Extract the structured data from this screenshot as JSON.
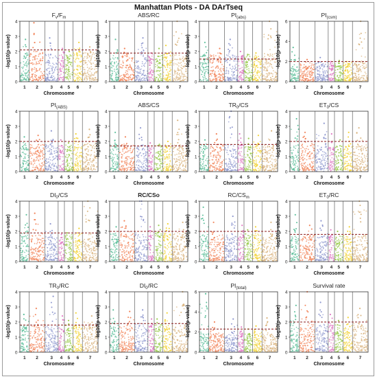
{
  "title": "Manhattan Plots - DA DArTseq",
  "palette": [
    "#5cbf9a",
    "#f2845a",
    "#8f98cf",
    "#e07bc4",
    "#99cc4d",
    "#f2d233",
    "#d9b37d"
  ],
  "chart_data": [
    {
      "type": "scatter",
      "title": "F",
      "title_main": "F",
      "title_sub": "v",
      "title_rest": "/F",
      "title_sub2": "m",
      "xlabel": "Chromosome",
      "ylabel": "-log10(p-value)",
      "ylim": [
        0,
        4
      ],
      "yticks": [
        0,
        1,
        2,
        3,
        4
      ],
      "categories": [
        "1",
        "2",
        "3",
        "4",
        "5",
        "6",
        "7"
      ],
      "threshold": 2.1,
      "peaks": [
        2.8,
        3.9,
        2.9,
        2.2,
        2.0,
        2.6,
        2.3
      ],
      "base": [
        0.6,
        0.7,
        0.55,
        0.6,
        0.55,
        0.6,
        0.6
      ],
      "bold": false
    },
    {
      "type": "scatter",
      "title": "ABS/RC",
      "xlabel": "Chromosome",
      "ylabel": "-log10(p-value)",
      "ylim": [
        0,
        4
      ],
      "yticks": [
        0,
        1,
        2,
        3,
        4
      ],
      "categories": [
        "1",
        "2",
        "3",
        "4",
        "5",
        "6",
        "7"
      ],
      "threshold": 1.9,
      "peaks": [
        2.8,
        2.2,
        2.9,
        1.9,
        2.2,
        2.4,
        4.2
      ],
      "base": [
        0.5,
        0.55,
        0.5,
        0.5,
        0.5,
        0.55,
        0.5
      ],
      "bold": false
    },
    {
      "type": "scatter",
      "title": "PI",
      "title_main": "PI",
      "title_sub": "(abs)",
      "xlabel": "Chromosome",
      "ylabel": "-log10(p-value)",
      "ylim": [
        0,
        4
      ],
      "yticks": [
        0,
        1,
        2,
        3,
        4
      ],
      "categories": [
        "1",
        "2",
        "3",
        "4",
        "5",
        "6",
        "7"
      ],
      "threshold": 1.5,
      "peaks": [
        2.6,
        2.2,
        2.8,
        2.0,
        1.8,
        1.9,
        4.0
      ],
      "base": [
        0.5,
        0.55,
        0.5,
        0.5,
        0.5,
        0.5,
        0.6
      ],
      "bold": false
    },
    {
      "type": "scatter",
      "title": "PI",
      "title_main": "PI",
      "title_sub": "(csm)",
      "xlabel": "Chromosome",
      "ylabel": "-log10(p-value)",
      "ylim": [
        0,
        6
      ],
      "yticks": [
        0,
        2,
        4,
        6
      ],
      "categories": [
        "1",
        "2",
        "3",
        "4",
        "5",
        "6",
        "7"
      ],
      "threshold": 2.0,
      "peaks": [
        3.4,
        2.2,
        2.4,
        2.0,
        2.1,
        2.0,
        6.0
      ],
      "base": [
        0.6,
        0.6,
        0.6,
        0.6,
        0.6,
        0.6,
        0.8
      ],
      "bold": false
    },
    {
      "type": "scatter",
      "title": "PI",
      "title_main": "PI",
      "title_sub": "(ABS)",
      "xlabel": "Chromosome",
      "ylabel": "-log10(p-value)",
      "ylim": [
        0,
        4
      ],
      "yticks": [
        0,
        1,
        2,
        3,
        4
      ],
      "categories": [
        "1",
        "2",
        "3",
        "4",
        "5",
        "6",
        "7"
      ],
      "threshold": 2.0,
      "peaks": [
        2.3,
        2.4,
        2.7,
        2.1,
        1.9,
        2.5,
        2.8
      ],
      "base": [
        0.5,
        0.55,
        0.5,
        0.5,
        0.5,
        0.55,
        0.55
      ],
      "bold": false
    },
    {
      "type": "scatter",
      "title": "ABS/CS",
      "xlabel": "Chromosome",
      "ylabel": "-log10(p-value)",
      "ylim": [
        0,
        4
      ],
      "yticks": [
        0,
        1,
        2,
        3,
        4
      ],
      "categories": [
        "1",
        "2",
        "3",
        "4",
        "5",
        "6",
        "7"
      ],
      "threshold": 1.7,
      "peaks": [
        2.6,
        2.3,
        2.9,
        1.9,
        1.8,
        2.0,
        3.4
      ],
      "base": [
        0.5,
        0.55,
        0.5,
        0.5,
        0.5,
        0.5,
        0.55
      ],
      "bold": false
    },
    {
      "type": "scatter",
      "title": "TR",
      "title_main": "TR",
      "title_sub": "0",
      "title_rest": "/CS",
      "xlabel": "Chromosome",
      "ylabel": "-log10(p-value)",
      "ylim": [
        0,
        4
      ],
      "yticks": [
        0,
        1,
        2,
        3,
        4
      ],
      "categories": [
        "1",
        "2",
        "3",
        "4",
        "5",
        "6",
        "7"
      ],
      "threshold": 1.8,
      "peaks": [
        2.1,
        2.5,
        4.1,
        2.5,
        2.2,
        2.4,
        2.7
      ],
      "base": [
        0.5,
        0.5,
        0.5,
        0.5,
        0.5,
        0.5,
        0.5
      ],
      "bold": false
    },
    {
      "type": "scatter",
      "title": "ET",
      "title_main": "ET",
      "title_sub": "0",
      "title_rest": "/CS",
      "xlabel": "Chromosome",
      "ylabel": "-log10(p-value)",
      "ylim": [
        0,
        4
      ],
      "yticks": [
        0,
        1,
        2,
        3,
        4
      ],
      "categories": [
        "1",
        "2",
        "3",
        "4",
        "5",
        "6",
        "7"
      ],
      "threshold": 2.0,
      "peaks": [
        3.5,
        2.6,
        3.2,
        2.5,
        2.1,
        2.6,
        2.9
      ],
      "base": [
        0.55,
        0.55,
        0.55,
        0.5,
        0.5,
        0.55,
        0.55
      ],
      "bold": false
    },
    {
      "type": "scatter",
      "title": "DI",
      "title_main": "DI",
      "title_sub": "0",
      "title_rest": "/CS",
      "xlabel": "Chromosome",
      "ylabel": "-log10(p-value)",
      "ylim": [
        0,
        4
      ],
      "yticks": [
        0,
        1,
        2,
        3,
        4
      ],
      "categories": [
        "1",
        "2",
        "3",
        "4",
        "5",
        "6",
        "7"
      ],
      "threshold": 1.9,
      "peaks": [
        3.1,
        3.2,
        2.5,
        1.8,
        1.9,
        2.2,
        4.7
      ],
      "base": [
        0.5,
        0.55,
        0.5,
        0.5,
        0.5,
        0.5,
        0.55
      ],
      "bold": false
    },
    {
      "type": "scatter",
      "title": "RC/CSo",
      "xlabel": "Chromosome",
      "ylabel": "-log10(p-value)",
      "ylim": [
        0,
        4
      ],
      "yticks": [
        0,
        1,
        2,
        3,
        4
      ],
      "categories": [
        "1",
        "2",
        "3",
        "4",
        "5",
        "6",
        "7"
      ],
      "threshold": 2.0,
      "peaks": [
        2.3,
        2.7,
        4.6,
        2.3,
        2.4,
        2.5,
        2.6
      ],
      "base": [
        0.6,
        0.6,
        0.6,
        0.6,
        0.6,
        0.6,
        0.6
      ],
      "bold": true
    },
    {
      "type": "scatter",
      "title": "RC/CS",
      "title_main": "RC/CS",
      "title_sub": "m",
      "xlabel": "Chromosome",
      "ylabel": "-log10(p-value)",
      "ylim": [
        0,
        4
      ],
      "yticks": [
        0,
        1,
        2,
        3,
        4
      ],
      "categories": [
        "1",
        "2",
        "3",
        "4",
        "5",
        "6",
        "7"
      ],
      "threshold": 2.0,
      "peaks": [
        3.6,
        2.6,
        3.0,
        2.4,
        2.1,
        2.3,
        2.6
      ],
      "base": [
        0.5,
        0.5,
        0.5,
        0.5,
        0.5,
        0.5,
        0.5
      ],
      "bold": false
    },
    {
      "type": "scatter",
      "title": "ET",
      "title_main": "ET",
      "title_sub": "0",
      "title_rest": "/RC",
      "xlabel": "Chromosome",
      "ylabel": "-log10(p-value)",
      "ylim": [
        0,
        4
      ],
      "yticks": [
        0,
        1,
        2,
        3,
        4
      ],
      "categories": [
        "1",
        "2",
        "3",
        "4",
        "5",
        "6",
        "7"
      ],
      "threshold": 1.8,
      "peaks": [
        3.1,
        2.4,
        2.7,
        2.1,
        2.0,
        2.3,
        4.4
      ],
      "base": [
        0.5,
        0.5,
        0.5,
        0.5,
        0.5,
        0.5,
        0.5
      ],
      "bold": false
    },
    {
      "type": "scatter",
      "title": "TR",
      "title_main": "TR",
      "title_sub": "0",
      "title_rest": "/RC",
      "xlabel": "Chromosome",
      "ylabel": "-log10(p-value)",
      "ylim": [
        0,
        4
      ],
      "yticks": [
        0,
        1,
        2,
        3,
        4
      ],
      "categories": [
        "1",
        "2",
        "3",
        "4",
        "5",
        "6",
        "7"
      ],
      "threshold": 1.8,
      "peaks": [
        2.5,
        2.9,
        3.7,
        2.4,
        2.1,
        2.6,
        2.4
      ],
      "base": [
        0.5,
        0.5,
        0.5,
        0.5,
        0.5,
        0.5,
        0.5
      ],
      "bold": false
    },
    {
      "type": "scatter",
      "title": "DI",
      "title_main": "DI",
      "title_sub": "0",
      "title_rest": "/RC",
      "xlabel": "Chromosome",
      "ylabel": "-log10(p-value)",
      "ylim": [
        0,
        4
      ],
      "yticks": [
        0,
        1,
        2,
        3,
        4
      ],
      "categories": [
        "1",
        "2",
        "3",
        "4",
        "5",
        "6",
        "7"
      ],
      "threshold": 1.9,
      "peaks": [
        2.8,
        2.7,
        2.8,
        2.2,
        2.2,
        2.6,
        4.1
      ],
      "base": [
        0.5,
        0.5,
        0.5,
        0.5,
        0.5,
        0.5,
        0.5
      ],
      "bold": false
    },
    {
      "type": "scatter",
      "title": "PI",
      "title_main": "PI",
      "title_sub": "(total)",
      "xlabel": "Chromosome",
      "ylabel": "-log10(p-value)",
      "ylim": [
        0,
        6
      ],
      "yticks": [
        0,
        2,
        4,
        6
      ],
      "categories": [
        "1",
        "2",
        "3",
        "4",
        "5",
        "6",
        "7"
      ],
      "threshold": 2.3,
      "peaks": [
        5.8,
        3.0,
        3.3,
        2.5,
        2.3,
        2.6,
        3.4
      ],
      "base": [
        0.6,
        0.6,
        0.6,
        0.6,
        0.6,
        0.6,
        0.6
      ],
      "bold": false
    },
    {
      "type": "scatter",
      "title": "Survival rate",
      "xlabel": "Chromosome",
      "ylabel": "-log10(p-value)",
      "ylim": [
        0,
        4
      ],
      "yticks": [
        0,
        1,
        2,
        3,
        4
      ],
      "categories": [
        "1",
        "2",
        "3",
        "4",
        "5",
        "6",
        "7"
      ],
      "threshold": 2.0,
      "peaks": [
        3.1,
        4.1,
        3.3,
        2.5,
        2.1,
        2.3,
        2.9
      ],
      "base": [
        0.6,
        0.6,
        0.6,
        0.6,
        0.6,
        0.6,
        0.6
      ],
      "bold": false
    }
  ]
}
